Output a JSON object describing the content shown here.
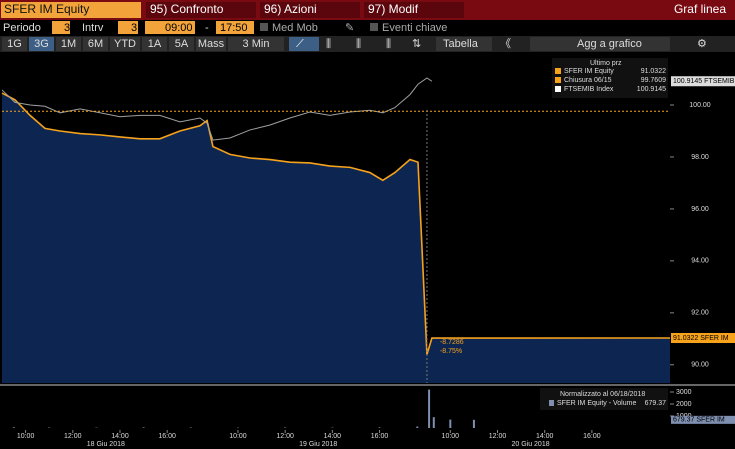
{
  "toolbar": {
    "security": "SFER IM Equity",
    "menu": [
      "95) Confronto",
      "96) Azioni",
      "97) Modif"
    ],
    "chart_type": "Graf linea"
  },
  "settings": {
    "period_label": "Periodo",
    "period": "3",
    "interval_label": "Intrv",
    "interval": "3",
    "start": "09:00",
    "separator": "-",
    "end": "17:50",
    "moving_avg": "Med Mob",
    "events": "Eventi chiave"
  },
  "buttons": [
    "1G",
    "3G",
    "1M",
    "6M",
    "YTD",
    "1A",
    "5A",
    "Mass",
    "3 Min"
  ],
  "table_button": "Tabella",
  "add_button": "Agg a grafico",
  "chart_data": {
    "type": "line",
    "x": [
      0,
      0.55,
      1.19,
      1.82,
      2.46,
      3.31,
      4.15,
      5.0,
      5.85,
      6.69,
      7.54,
      8.39,
      8.69,
      8.94,
      9.66,
      10.51,
      11.36,
      12.2,
      13.05,
      13.9,
      14.75,
      15.59,
      16.14,
      16.65,
      17.29,
      17.63,
      18.01,
      18.22,
      28.31
    ],
    "series": [
      {
        "name": "SFER IM Equity",
        "color": "#f7a21b",
        "fill": "#0e2a5a",
        "values": [
          100.46,
          100.2,
          99.6,
          99.1,
          99.0,
          98.9,
          98.85,
          98.77,
          98.7,
          98.7,
          99.0,
          99.2,
          99.4,
          98.4,
          98.1,
          97.96,
          97.9,
          97.8,
          97.77,
          97.65,
          97.6,
          97.4,
          97.1,
          97.4,
          97.9,
          97.8,
          90.4,
          91.03,
          91.0322
        ],
        "last": 91.0322,
        "tag": "91.0322  SFER IM"
      },
      {
        "name": "FTSEMIB Index",
        "color": "#a0a0a0",
        "values": [
          100.58,
          100.1,
          100.0,
          99.95,
          99.7,
          99.85,
          99.7,
          99.55,
          99.6,
          99.6,
          99.35,
          99.5,
          99.3,
          98.65,
          98.73,
          99.04,
          99.23,
          99.5,
          99.73,
          99.6,
          99.73,
          99.8,
          99.7,
          99.9,
          100.4,
          100.8,
          101.04,
          100.9145,
          null
        ],
        "last": 100.9145,
        "tag": "100.9145 FTSEMIB"
      }
    ],
    "reference": {
      "name": "Chiusura 06/15",
      "value": 99.7609,
      "color": "#f7a21b"
    },
    "legend_title": "Ultimo prz",
    "annotations": [
      "-8.7286",
      "-8.75%"
    ],
    "xlim": [
      0,
      28.31
    ],
    "ylim": [
      89.3,
      102.04
    ],
    "yticks": [
      {
        "value": 90,
        "label": "90.00"
      },
      {
        "value": 92,
        "label": "92.00"
      },
      {
        "value": 94,
        "label": "94.00"
      },
      {
        "value": 96,
        "label": "96.00"
      },
      {
        "value": 98,
        "label": "98.00"
      },
      {
        "value": 100,
        "label": "100.00"
      }
    ],
    "xticks": [
      {
        "value": 1.0,
        "label": "10:00"
      },
      {
        "value": 3.0,
        "label": "12:00"
      },
      {
        "value": 5.0,
        "label": "14:00"
      },
      {
        "value": 7.0,
        "label": "16:00"
      },
      {
        "value": 10.0,
        "label": "10:00"
      },
      {
        "value": 12.0,
        "label": "12:00"
      },
      {
        "value": 14.0,
        "label": "14:00"
      },
      {
        "value": 16.0,
        "label": "16:00"
      },
      {
        "value": 19.0,
        "label": "10:00"
      },
      {
        "value": 21.0,
        "label": "12:00"
      },
      {
        "value": 23.0,
        "label": "14:00"
      },
      {
        "value": 25.0,
        "label": "16:00"
      }
    ],
    "dates": [
      {
        "value": 4.4,
        "label": "18 Giu 2018"
      },
      {
        "value": 13.4,
        "label": "19 Giu 2018"
      },
      {
        "value": 22.4,
        "label": "20 Giu 2018"
      }
    ],
    "volume": {
      "title": "Normalizzato al 06/18/2018",
      "name": "SFER IM Equity - Volume",
      "color": "#7f8fb0",
      "last": 679.37,
      "tag": "679.37 SFER IM",
      "x": [
        0.5,
        2,
        4,
        6,
        8,
        10,
        12,
        14,
        16,
        17.6,
        18.1,
        18.3,
        19,
        20
      ],
      "values": [
        60,
        40,
        30,
        50,
        40,
        30,
        40,
        30,
        50,
        120,
        3200,
        900,
        700,
        679.37
      ],
      "ylim": [
        0,
        3333
      ],
      "yticks": [
        1000,
        2000,
        3000
      ]
    }
  }
}
